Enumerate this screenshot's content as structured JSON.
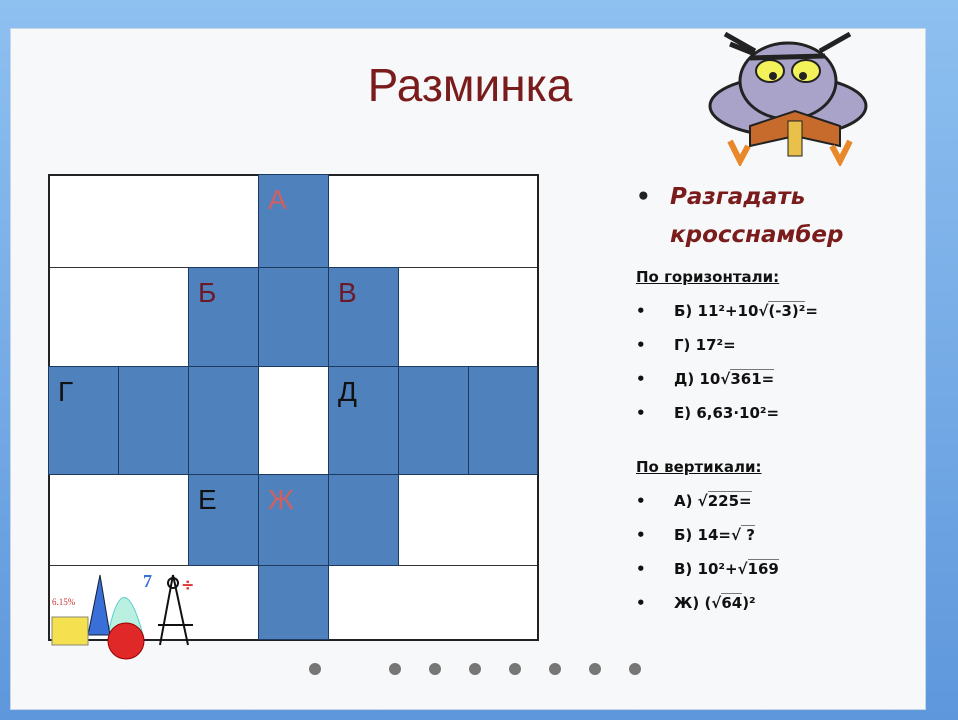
{
  "title": "Разминка",
  "task": "Разгадать кросснамбер",
  "bullet": "•",
  "colors": {
    "cell_blue": "#4f81bd",
    "title": "#7a1c1c",
    "letter_light": "#d06060",
    "letter_dark": "#6b1a2a"
  },
  "crossword": {
    "columns": 7,
    "rows": 5,
    "blue_cells": [
      [
        0,
        3
      ],
      [
        1,
        2
      ],
      [
        1,
        3
      ],
      [
        1,
        4
      ],
      [
        2,
        0
      ],
      [
        2,
        1
      ],
      [
        2,
        2
      ],
      [
        2,
        4
      ],
      [
        2,
        5
      ],
      [
        2,
        6
      ],
      [
        3,
        2
      ],
      [
        3,
        3
      ],
      [
        3,
        4
      ],
      [
        4,
        3
      ]
    ],
    "labels": [
      {
        "row": 0,
        "col": 3,
        "text": "А",
        "tone": "light"
      },
      {
        "row": 1,
        "col": 2,
        "text": "Б",
        "tone": "dark"
      },
      {
        "row": 1,
        "col": 4,
        "text": "В",
        "tone": "dark"
      },
      {
        "row": 2,
        "col": 0,
        "text": "Г",
        "tone": "black"
      },
      {
        "row": 2,
        "col": 4,
        "text": "Д",
        "tone": "black"
      },
      {
        "row": 3,
        "col": 2,
        "text": "Е",
        "tone": "black"
      },
      {
        "row": 3,
        "col": 3,
        "text": "Ж",
        "tone": "light"
      }
    ]
  },
  "horizontal": {
    "heading": "По горизонтали:",
    "clues": [
      {
        "pre": "Б) 11²+10√",
        "rad": "(-3)²",
        "post": "="
      },
      {
        "pre": "Г) 17²=",
        "rad": "",
        "post": ""
      },
      {
        "pre": "Д) 10√",
        "rad": "361=",
        "post": ""
      },
      {
        "pre": "Е) 6,63·10²=",
        "rad": "",
        "post": ""
      }
    ]
  },
  "vertical": {
    "heading": "По вертикали:",
    "clues": [
      {
        "pre": "А) √",
        "rad": "225=",
        "post": ""
      },
      {
        "pre": "Б) 14=√",
        "rad": " ? ",
        "post": ""
      },
      {
        "pre": "В) 10²+√",
        "rad": "169 ",
        "post": ""
      },
      {
        "pre": "Ж) (√",
        "rad": "64",
        "post": ")²"
      }
    ]
  },
  "clipart_label": "6.15%",
  "slide_dots": 8
}
